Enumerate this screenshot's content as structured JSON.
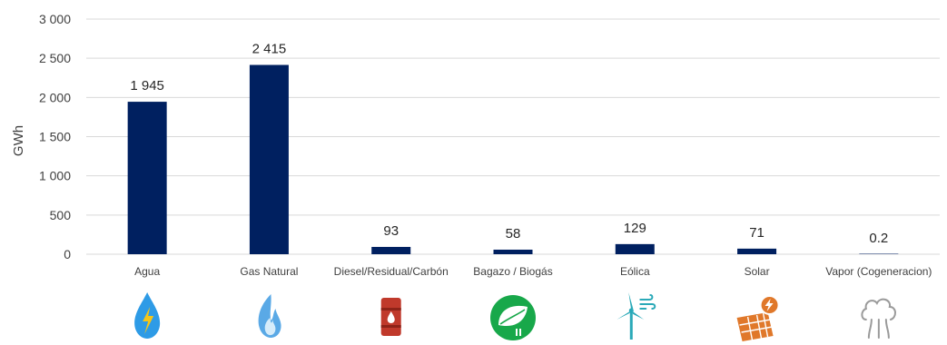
{
  "chart_data": {
    "type": "bar",
    "categories": [
      "Agua",
      "Gas Natural",
      "Diesel/Residual/Carbón",
      "Bagazo / Biogás",
      "Eólica",
      "Solar",
      "Vapor (Cogeneracion)"
    ],
    "values": [
      1945,
      2415,
      93,
      58,
      129,
      71,
      0.2
    ],
    "data_labels": [
      "1 945",
      "2 415",
      "93",
      "58",
      "129",
      "71",
      "0.2"
    ],
    "title": "",
    "xlabel": "",
    "ylabel": "GWh",
    "ylim": [
      0,
      3000
    ],
    "yticks": [
      0,
      500,
      1000,
      1500,
      2000,
      2500,
      3000
    ],
    "ytick_labels": [
      "0",
      "500",
      "1 000",
      "1 500",
      "2 000",
      "2 500",
      "3 000"
    ],
    "grid": true,
    "legend": "none",
    "category_icons": [
      "water-lightning-icon",
      "gas-flame-icon",
      "oil-barrel-icon",
      "biogas-leaf-plug-icon",
      "wind-turbine-icon",
      "solar-panel-icon",
      "steam-cloud-icon"
    ]
  },
  "colors": {
    "bar": "#002060",
    "gridline": "#d9d9d9",
    "water": "#2e9be6",
    "gas": "#5aa9e6",
    "oil": "#c0392b",
    "biogas": "#18a84a",
    "wind": "#2aa9b8",
    "solar": "#e0782a",
    "steam": "#9a9a9a"
  }
}
